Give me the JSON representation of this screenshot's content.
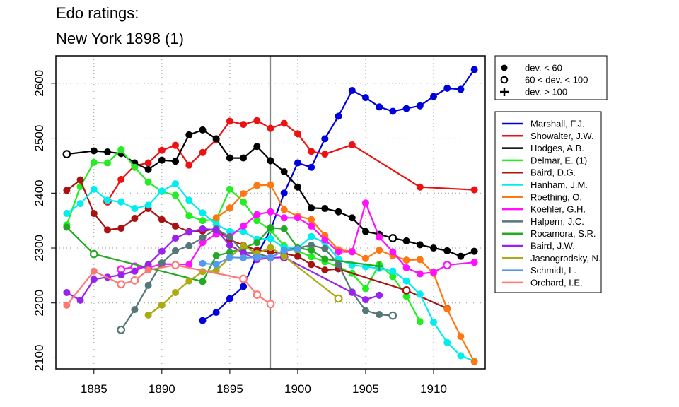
{
  "title_lines": [
    "Edo ratings:",
    "New York 1898 (1)"
  ],
  "chart_data": {
    "type": "line",
    "title": "Edo ratings: New York 1898 (1)",
    "xlabel": "",
    "ylabel": "",
    "xlim": [
      1882.2,
      1913.8
    ],
    "ylim": [
      2080,
      2650
    ],
    "xticks": [
      1885,
      1890,
      1895,
      1900,
      1905,
      1910
    ],
    "yticks": [
      2100,
      2200,
      2300,
      2400,
      2500,
      2600
    ],
    "grid": true,
    "reference_line_x": 1898,
    "marker_legend": {
      "placement": "top-right, outside plot",
      "entries": [
        {
          "symbol": "filled-circle",
          "label": "dev. < 60"
        },
        {
          "symbol": "open-circle",
          "label": "60 < dev. < 100"
        },
        {
          "symbol": "plus",
          "label": "dev. > 100"
        }
      ]
    },
    "legend_placement": "right, outside plot",
    "series": [
      {
        "name": "Marshall, F.J.",
        "color": "#0000dd",
        "points": [
          [
            1893,
            2168
          ],
          [
            1894,
            2183
          ],
          [
            1895,
            2208
          ],
          [
            1896,
            2230
          ],
          [
            1897,
            2287
          ],
          [
            1898,
            2333
          ],
          [
            1899,
            2400
          ],
          [
            1900,
            2455
          ],
          [
            1901,
            2447
          ],
          [
            1902,
            2499
          ],
          [
            1903,
            2540
          ],
          [
            1904,
            2587
          ],
          [
            1905,
            2574
          ],
          [
            1906,
            2557
          ],
          [
            1907,
            2549
          ],
          [
            1908,
            2554
          ],
          [
            1909,
            2559
          ],
          [
            1910,
            2576
          ],
          [
            1911,
            2591
          ],
          [
            1912,
            2589
          ],
          [
            1913,
            2625
          ]
        ],
        "open": []
      },
      {
        "name": "Showalter, J.W.",
        "color": "#ee1111",
        "points": [
          [
            1886,
            2385
          ],
          [
            1887,
            2425
          ],
          [
            1888,
            2450
          ],
          [
            1889,
            2455
          ],
          [
            1890,
            2478
          ],
          [
            1891,
            2487
          ],
          [
            1892,
            2451
          ],
          [
            1893,
            2474
          ],
          [
            1894,
            2497
          ],
          [
            1895,
            2531
          ],
          [
            1896,
            2525
          ],
          [
            1897,
            2532
          ],
          [
            1898,
            2518
          ],
          [
            1899,
            2527
          ],
          [
            1900,
            2508
          ],
          [
            1901,
            2476
          ],
          [
            1902,
            2471
          ],
          [
            1904,
            2488
          ],
          [
            1909,
            2411
          ],
          [
            1913,
            2406
          ]
        ],
        "open": [
          1886
        ]
      },
      {
        "name": "Hodges, A.B.",
        "color": "#000000",
        "points": [
          [
            1883,
            2471
          ],
          [
            1885,
            2477
          ],
          [
            1886,
            2475
          ],
          [
            1887,
            2472
          ],
          [
            1888,
            2455
          ],
          [
            1889,
            2443
          ],
          [
            1890,
            2460
          ],
          [
            1891,
            2458
          ],
          [
            1892,
            2506
          ],
          [
            1893,
            2515
          ],
          [
            1894,
            2499
          ],
          [
            1895,
            2464
          ],
          [
            1896,
            2464
          ],
          [
            1897,
            2485
          ],
          [
            1898,
            2459
          ],
          [
            1899,
            2439
          ],
          [
            1900,
            2411
          ],
          [
            1901,
            2373
          ],
          [
            1902,
            2372
          ],
          [
            1903,
            2366
          ],
          [
            1904,
            2355
          ],
          [
            1905,
            2330
          ],
          [
            1906,
            2325
          ],
          [
            1907,
            2318
          ],
          [
            1908,
            2313
          ],
          [
            1909,
            2306
          ],
          [
            1910,
            2300
          ],
          [
            1911,
            2295
          ],
          [
            1912,
            2285
          ],
          [
            1913,
            2294
          ]
        ],
        "open": [
          1883,
          1907
        ]
      },
      {
        "name": "Delmar, E. (1)",
        "color": "#22ee22",
        "points": [
          [
            1883,
            2342
          ],
          [
            1884,
            2412
          ],
          [
            1885,
            2456
          ],
          [
            1886,
            2455
          ],
          [
            1887,
            2479
          ],
          [
            1888,
            2447
          ],
          [
            1889,
            2420
          ],
          [
            1890,
            2403
          ],
          [
            1891,
            2396
          ],
          [
            1892,
            2359
          ],
          [
            1893,
            2350
          ],
          [
            1894,
            2352
          ],
          [
            1895,
            2407
          ],
          [
            1896,
            2384
          ],
          [
            1897,
            2350
          ],
          [
            1898,
            2333
          ],
          [
            1899,
            2304
          ],
          [
            1900,
            2295
          ],
          [
            1901,
            2284
          ],
          [
            1902,
            2275
          ],
          [
            1903,
            2266
          ],
          [
            1904,
            2254
          ],
          [
            1905,
            2226
          ],
          [
            1906,
            2270
          ],
          [
            1907,
            2248
          ],
          [
            1908,
            2212
          ],
          [
            1909,
            2166
          ]
        ],
        "open": []
      },
      {
        "name": "Baird, D.G.",
        "color": "#aa1111",
        "points": [
          [
            1883,
            2405
          ],
          [
            1884,
            2424
          ],
          [
            1885,
            2363
          ],
          [
            1886,
            2333
          ],
          [
            1887,
            2336
          ],
          [
            1888,
            2354
          ],
          [
            1889,
            2372
          ],
          [
            1890,
            2352
          ],
          [
            1891,
            2340
          ],
          [
            1892,
            2330
          ],
          [
            1893,
            2331
          ],
          [
            1894,
            2335
          ],
          [
            1895,
            2315
          ],
          [
            1896,
            2305
          ],
          [
            1897,
            2296
          ],
          [
            1898,
            2293
          ],
          [
            1899,
            2290
          ],
          [
            1900,
            2285
          ],
          [
            1901,
            2270
          ],
          [
            1902,
            2260
          ],
          [
            1903,
            2262
          ],
          [
            1908,
            2223
          ],
          [
            1911,
            2190
          ]
        ],
        "open": [
          1908
        ]
      },
      {
        "name": "Hanham, J.M.",
        "color": "#00eeee",
        "points": [
          [
            1883,
            2363
          ],
          [
            1884,
            2381
          ],
          [
            1885,
            2407
          ],
          [
            1886,
            2387
          ],
          [
            1887,
            2384
          ],
          [
            1888,
            2372
          ],
          [
            1889,
            2378
          ],
          [
            1890,
            2404
          ],
          [
            1891,
            2417
          ],
          [
            1892,
            2387
          ],
          [
            1893,
            2364
          ],
          [
            1894,
            2343
          ],
          [
            1895,
            2330
          ],
          [
            1896,
            2330
          ],
          [
            1897,
            2316
          ],
          [
            1898,
            2317
          ],
          [
            1899,
            2300
          ],
          [
            1900,
            2300
          ],
          [
            1901,
            2321
          ],
          [
            1902,
            2310
          ],
          [
            1903,
            2280
          ],
          [
            1904,
            2269
          ],
          [
            1905,
            2266
          ],
          [
            1906,
            2263
          ],
          [
            1907,
            2258
          ],
          [
            1908,
            2240
          ],
          [
            1909,
            2216
          ],
          [
            1910,
            2165
          ],
          [
            1911,
            2128
          ],
          [
            1912,
            2104
          ],
          [
            1913,
            2094
          ]
        ],
        "open": []
      },
      {
        "name": "Roething, O.",
        "color": "#ff7711",
        "points": [
          [
            1894,
            2355
          ],
          [
            1895,
            2373
          ],
          [
            1896,
            2399
          ],
          [
            1897,
            2414
          ],
          [
            1898,
            2415
          ],
          [
            1899,
            2370
          ],
          [
            1900,
            2358
          ],
          [
            1901,
            2352
          ],
          [
            1902,
            2323
          ],
          [
            1903,
            2297
          ],
          [
            1904,
            2294
          ],
          [
            1905,
            2281
          ],
          [
            1906,
            2296
          ],
          [
            1907,
            2286
          ],
          [
            1908,
            2278
          ],
          [
            1909,
            2279
          ],
          [
            1910,
            2254
          ],
          [
            1911,
            2189
          ],
          [
            1912,
            2139
          ],
          [
            1913,
            2093
          ]
        ],
        "open": []
      },
      {
        "name": "Koehler, G.H.",
        "color": "#ff11ff",
        "points": [
          [
            1887,
            2261
          ],
          [
            1888,
            2266
          ],
          [
            1889,
            2264
          ],
          [
            1890,
            2271
          ],
          [
            1892,
            2270
          ],
          [
            1893,
            2310
          ],
          [
            1894,
            2325
          ],
          [
            1895,
            2321
          ],
          [
            1896,
            2340
          ],
          [
            1897,
            2361
          ],
          [
            1898,
            2366
          ],
          [
            1899,
            2355
          ],
          [
            1900,
            2355
          ],
          [
            1901,
            2340
          ],
          [
            1902,
            2315
          ],
          [
            1903,
            2293
          ],
          [
            1904,
            2293
          ],
          [
            1905,
            2382
          ],
          [
            1906,
            2320
          ],
          [
            1907,
            2293
          ],
          [
            1908,
            2264
          ],
          [
            1909,
            2253
          ],
          [
            1910,
            2256
          ],
          [
            1911,
            2269
          ],
          [
            1913,
            2274
          ]
        ],
        "open": [
          1887,
          1888,
          1911
        ]
      },
      {
        "name": "Halpern, J.C.",
        "color": "#557777",
        "points": [
          [
            1887,
            2151
          ],
          [
            1888,
            2188
          ],
          [
            1889,
            2232
          ],
          [
            1890,
            2273
          ],
          [
            1891,
            2295
          ],
          [
            1892,
            2304
          ],
          [
            1893,
            2319
          ],
          [
            1894,
            2335
          ],
          [
            1895,
            2320
          ],
          [
            1896,
            2292
          ],
          [
            1897,
            2290
          ],
          [
            1898,
            2283
          ],
          [
            1899,
            2296
          ],
          [
            1900,
            2300
          ],
          [
            1901,
            2305
          ],
          [
            1902,
            2299
          ],
          [
            1903,
            2270
          ],
          [
            1904,
            2220
          ],
          [
            1905,
            2186
          ],
          [
            1906,
            2179
          ],
          [
            1907,
            2177
          ]
        ],
        "open": [
          1887,
          1907
        ]
      },
      {
        "name": "Rocamora, S.R.",
        "color": "#22aa22",
        "points": [
          [
            1883,
            2338
          ],
          [
            1885,
            2289
          ],
          [
            1893,
            2239
          ],
          [
            1894,
            2286
          ],
          [
            1895,
            2292
          ],
          [
            1896,
            2300
          ],
          [
            1897,
            2310
          ],
          [
            1898,
            2337
          ],
          [
            1899,
            2335
          ],
          [
            1900,
            2300
          ],
          [
            1901,
            2296
          ],
          [
            1902,
            2280
          ],
          [
            1906,
            2267
          ]
        ],
        "open": [
          1885
        ],
        "plus": [
          1906
        ]
      },
      {
        "name": "Baird, J.W.",
        "color": "#9922ee",
        "points": [
          [
            1883,
            2219
          ],
          [
            1884,
            2205
          ],
          [
            1885,
            2243
          ],
          [
            1886,
            2247
          ],
          [
            1887,
            2251
          ],
          [
            1888,
            2258
          ],
          [
            1889,
            2270
          ],
          [
            1890,
            2294
          ],
          [
            1891,
            2318
          ],
          [
            1892,
            2329
          ],
          [
            1893,
            2335
          ],
          [
            1894,
            2333
          ],
          [
            1895,
            2305
          ],
          [
            1896,
            2291
          ],
          [
            1897,
            2279
          ],
          [
            1898,
            2282
          ],
          [
            1899,
            2283
          ],
          [
            1904,
            2219
          ],
          [
            1905,
            2206
          ],
          [
            1906,
            2214
          ]
        ],
        "open": [
          1899
        ]
      },
      {
        "name": "Jasnogrodsky, N.",
        "color": "#aaaa11",
        "points": [
          [
            1889,
            2178
          ],
          [
            1890,
            2196
          ],
          [
            1891,
            2219
          ],
          [
            1892,
            2240
          ],
          [
            1893,
            2257
          ],
          [
            1894,
            2259
          ],
          [
            1895,
            2283
          ],
          [
            1896,
            2304
          ],
          [
            1897,
            2290
          ],
          [
            1898,
            2301
          ],
          [
            1899,
            2285
          ],
          [
            1903,
            2208
          ]
        ],
        "open": [
          1903
        ]
      },
      {
        "name": "Schmidt, L.",
        "color": "#5599ee",
        "points": [
          [
            1893,
            2272
          ],
          [
            1894,
            2270
          ],
          [
            1895,
            2283
          ],
          [
            1896,
            2282
          ],
          [
            1897,
            2283
          ],
          [
            1898,
            2283
          ],
          [
            1899,
            2295
          ],
          [
            1900,
            2298
          ]
        ],
        "open": []
      },
      {
        "name": "Orchard, I.E.",
        "color": "#ff7777",
        "points": [
          [
            1883,
            2196
          ],
          [
            1885,
            2258
          ],
          [
            1887,
            2234
          ],
          [
            1888,
            2241
          ],
          [
            1889,
            2260
          ],
          [
            1891,
            2269
          ],
          [
            1896,
            2244
          ],
          [
            1897,
            2215
          ],
          [
            1898,
            2198
          ]
        ],
        "open": [
          1887,
          1888,
          1891,
          1896,
          1897,
          1898
        ]
      }
    ]
  }
}
